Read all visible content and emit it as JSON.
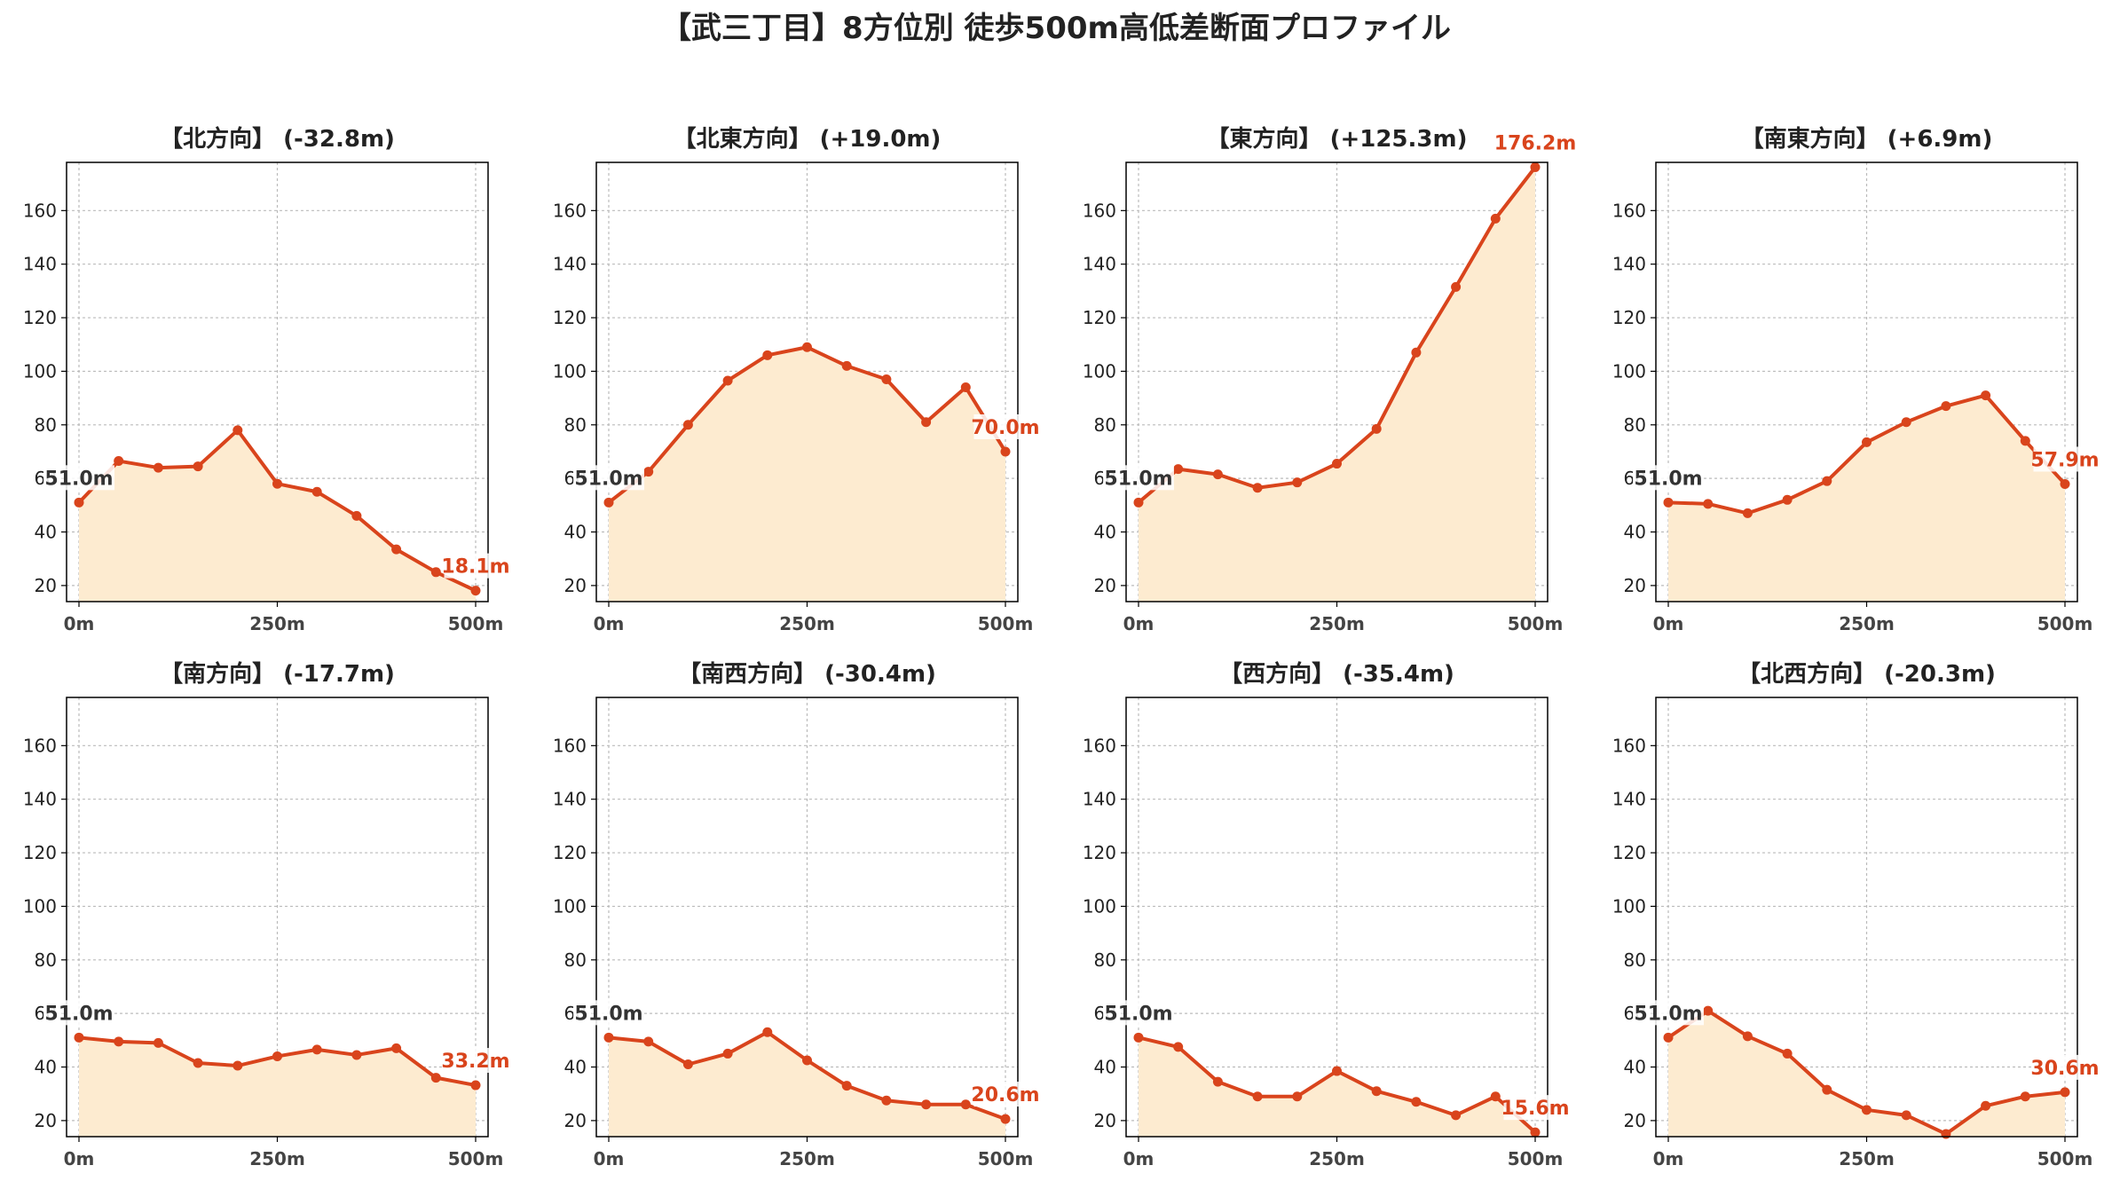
{
  "title": "【武三丁目】8方位別 徒歩500m高低差断面プロファイル",
  "colors": {
    "line": "#d9441c",
    "fill": "#fdebd0",
    "start_label": "#333333",
    "end_label": "#d9441c",
    "grid": "#bbbbbb",
    "axis": "#000000"
  },
  "chart_data": [
    {
      "type": "area",
      "title": "【北方向】 (-32.8m)",
      "x": [
        0,
        50,
        100,
        150,
        200,
        250,
        300,
        350,
        400,
        450,
        500
      ],
      "values": [
        51.0,
        66.5,
        64.0,
        64.5,
        78.0,
        58.0,
        55.0,
        46.0,
        33.5,
        25.0,
        18.1
      ],
      "start_label": "51.0m",
      "end_label": "18.1m",
      "xticks": [
        "0m",
        "250m",
        "500m"
      ],
      "yticks": [
        20,
        40,
        60,
        80,
        100,
        120,
        140,
        160
      ],
      "xlim": [
        0,
        500
      ],
      "ylim": [
        14,
        178
      ],
      "grid": true
    },
    {
      "type": "area",
      "title": "【北東方向】 (+19.0m)",
      "x": [
        0,
        50,
        100,
        150,
        200,
        250,
        300,
        350,
        400,
        450,
        500
      ],
      "values": [
        51.0,
        62.5,
        80.0,
        96.5,
        106.0,
        109.0,
        102.0,
        97.0,
        81.0,
        94.0,
        70.0
      ],
      "start_label": "51.0m",
      "end_label": "70.0m",
      "xticks": [
        "0m",
        "250m",
        "500m"
      ],
      "yticks": [
        20,
        40,
        60,
        80,
        100,
        120,
        140,
        160
      ],
      "xlim": [
        0,
        500
      ],
      "ylim": [
        14,
        178
      ],
      "grid": true
    },
    {
      "type": "area",
      "title": "【東方向】 (+125.3m)",
      "x": [
        0,
        50,
        100,
        150,
        200,
        250,
        300,
        350,
        400,
        450,
        500
      ],
      "values": [
        51.0,
        63.5,
        61.5,
        56.5,
        58.5,
        65.5,
        78.5,
        107.0,
        131.5,
        157.0,
        176.2
      ],
      "start_label": "51.0m",
      "end_label": "176.2m",
      "xticks": [
        "0m",
        "250m",
        "500m"
      ],
      "yticks": [
        20,
        40,
        60,
        80,
        100,
        120,
        140,
        160
      ],
      "xlim": [
        0,
        500
      ],
      "ylim": [
        14,
        178
      ],
      "grid": true
    },
    {
      "type": "area",
      "title": "【南東方向】 (+6.9m)",
      "x": [
        0,
        50,
        100,
        150,
        200,
        250,
        300,
        350,
        400,
        450,
        500
      ],
      "values": [
        51.0,
        50.5,
        47.0,
        52.0,
        59.0,
        73.5,
        81.0,
        87.0,
        91.0,
        74.0,
        57.9
      ],
      "start_label": "51.0m",
      "end_label": "57.9m",
      "xticks": [
        "0m",
        "250m",
        "500m"
      ],
      "yticks": [
        20,
        40,
        60,
        80,
        100,
        120,
        140,
        160
      ],
      "xlim": [
        0,
        500
      ],
      "ylim": [
        14,
        178
      ],
      "grid": true
    },
    {
      "type": "area",
      "title": "【南方向】 (-17.7m)",
      "x": [
        0,
        50,
        100,
        150,
        200,
        250,
        300,
        350,
        400,
        450,
        500
      ],
      "values": [
        51.0,
        49.5,
        49.0,
        41.5,
        40.5,
        44.0,
        46.5,
        44.5,
        47.0,
        36.0,
        33.2
      ],
      "start_label": "51.0m",
      "end_label": "33.2m",
      "xticks": [
        "0m",
        "250m",
        "500m"
      ],
      "yticks": [
        20,
        40,
        60,
        80,
        100,
        120,
        140,
        160
      ],
      "xlim": [
        0,
        500
      ],
      "ylim": [
        14,
        178
      ],
      "grid": true
    },
    {
      "type": "area",
      "title": "【南西方向】 (-30.4m)",
      "x": [
        0,
        50,
        100,
        150,
        200,
        250,
        300,
        350,
        400,
        450,
        500
      ],
      "values": [
        51.0,
        49.5,
        41.0,
        45.0,
        53.0,
        42.5,
        33.0,
        27.5,
        26.0,
        26.0,
        20.6
      ],
      "start_label": "51.0m",
      "end_label": "20.6m",
      "xticks": [
        "0m",
        "250m",
        "500m"
      ],
      "yticks": [
        20,
        40,
        60,
        80,
        100,
        120,
        140,
        160
      ],
      "xlim": [
        0,
        500
      ],
      "ylim": [
        14,
        178
      ],
      "grid": true
    },
    {
      "type": "area",
      "title": "【西方向】 (-35.4m)",
      "x": [
        0,
        50,
        100,
        150,
        200,
        250,
        300,
        350,
        400,
        450,
        500
      ],
      "values": [
        51.0,
        47.5,
        34.5,
        29.0,
        29.0,
        38.5,
        31.0,
        27.0,
        22.0,
        29.0,
        15.6
      ],
      "start_label": "51.0m",
      "end_label": "15.6m",
      "xticks": [
        "0m",
        "250m",
        "500m"
      ],
      "yticks": [
        20,
        40,
        60,
        80,
        100,
        120,
        140,
        160
      ],
      "xlim": [
        0,
        500
      ],
      "ylim": [
        14,
        178
      ],
      "grid": true
    },
    {
      "type": "area",
      "title": "【北西方向】 (-20.3m)",
      "x": [
        0,
        50,
        100,
        150,
        200,
        250,
        300,
        350,
        400,
        450,
        500
      ],
      "values": [
        51.0,
        61.0,
        51.5,
        45.0,
        31.5,
        24.0,
        22.0,
        15.0,
        25.5,
        29.0,
        30.6
      ],
      "start_label": "51.0m",
      "end_label": "30.6m",
      "xticks": [
        "0m",
        "250m",
        "500m"
      ],
      "yticks": [
        20,
        40,
        60,
        80,
        100,
        120,
        140,
        160
      ],
      "xlim": [
        0,
        500
      ],
      "ylim": [
        14,
        178
      ],
      "grid": true
    }
  ]
}
